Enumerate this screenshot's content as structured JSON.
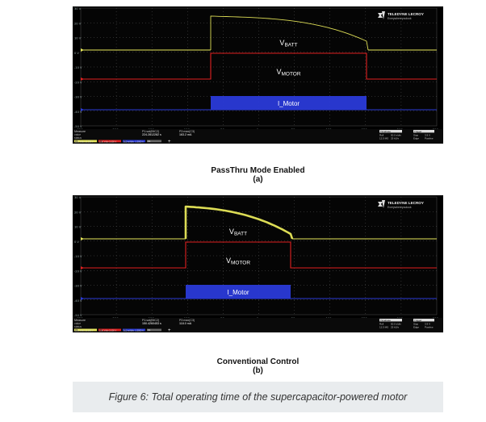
{
  "panels": [
    {
      "id": "a",
      "logo_line1": "TELEDYNE LECROY",
      "logo_line2": "Everywhereyoulook",
      "signal_labels": [
        "BATT",
        "MOTOR",
        "I_Motor"
      ],
      "y_ticks": [
        "30 V",
        "20 V",
        "10 V",
        "0 V",
        "-10 V",
        "-20 V",
        "-30 V",
        "-40 V",
        "-50 V"
      ],
      "x_ticks": [
        "-250 s",
        "-200 s",
        "-150 s",
        "-100 s",
        "-50 s",
        "0 s",
        "50 s",
        "100 s",
        "150 s",
        "200 s",
        "250 s"
      ],
      "measure_label": "Measure",
      "value_label": "value",
      "status_label": "status",
      "p1_label": "P1:sat(fMC2)",
      "p1_value": "224.2812282 s",
      "p2_label": "P2:max(C3)",
      "p2_value": "163.2 mA",
      "ch_names": [
        "C1",
        "C2",
        "C3",
        "F1"
      ],
      "ch_vdiv": [
        "10.0 V/div",
        "5.00 V/div",
        "500 mA/div"
      ],
      "ch_offset": [
        "10.000 V",
        "5.000 V",
        "-1.5000 A"
      ],
      "timebase": "Timebase",
      "trigger": "Trigger",
      "tb_row1": [
        "Roll",
        "50.0 s/div",
        "Stop",
        "3.9 V"
      ],
      "tb_row2": [
        "12.5 MS",
        "25 kS/s",
        "Edge",
        "Positive"
      ],
      "caption_title": "PassThru Mode Enabled",
      "caption_sub": "(a)"
    },
    {
      "id": "b",
      "logo_line1": "TELEDYNE LECROY",
      "logo_line2": "Everywhereyoulook",
      "signal_labels": [
        "BATT",
        "MOTOR",
        "I_Motor"
      ],
      "y_ticks": [
        "30 V",
        "20 V",
        "10 V",
        "0 V",
        "-10 V",
        "-20 V",
        "-30 V",
        "-40 V",
        "-50 V"
      ],
      "x_ticks": [
        "-250 s",
        "-200 s",
        "-150 s",
        "-100 s",
        "-50 s",
        "0 s",
        "50 s",
        "100 s",
        "150 s",
        "200 s",
        "250 s"
      ],
      "measure_label": "Measure",
      "value_label": "value",
      "status_label": "status",
      "p1_label": "P1:sat(fMC2)",
      "p1_value": "150.4260453 s",
      "p2_label": "P2:max(C3)",
      "p2_value": "118.0 mA",
      "ch_names": [
        "C1",
        "C2",
        "C3",
        "F1"
      ],
      "ch_vdiv": [
        "10.0 V/div",
        "5.00 V/div",
        "500 mA/div"
      ],
      "ch_offset": [
        "10.000 V",
        "5.000 V",
        "-1.5000 A"
      ],
      "timebase": "Timebase",
      "trigger": "Trigger",
      "tb_row1": [
        "Roll",
        "50.0 s/div",
        "Stop",
        "3.9 V"
      ],
      "tb_row2": [
        "12.5 MS",
        "25 kS/s",
        "Edge",
        "Positive"
      ],
      "caption_title": "Conventional Control",
      "caption_sub": "(b)"
    }
  ],
  "figure_caption": "Figure 6: Total operating time of the supercapacitor-powered motor",
  "colors": {
    "vbatt": "#e8e85a",
    "vmotor": "#e02020",
    "imotor": "#2a3ad8"
  }
}
